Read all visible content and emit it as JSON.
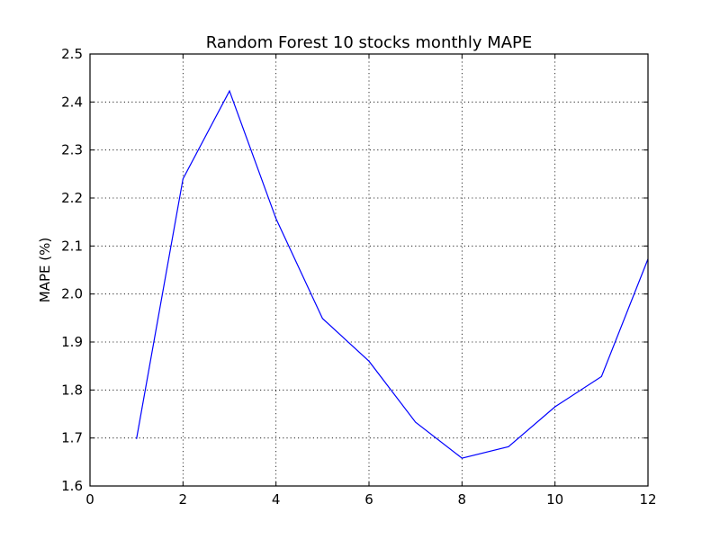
{
  "chart_data": {
    "type": "line",
    "title": "Random Forest 10 stocks monthly MAPE",
    "xlabel": "",
    "ylabel": "MAPE (%)",
    "xlim": [
      0,
      12
    ],
    "ylim": [
      1.6,
      2.5
    ],
    "x_ticks": [
      0,
      2,
      4,
      6,
      8,
      10,
      12
    ],
    "x_tick_labels": [
      "0",
      "2",
      "4",
      "6",
      "8",
      "10",
      "12"
    ],
    "y_ticks": [
      1.6,
      1.7,
      1.8,
      1.9,
      2.0,
      2.1,
      2.2,
      2.3,
      2.4,
      2.5
    ],
    "y_tick_labels": [
      "1.6",
      "1.7",
      "1.8",
      "1.9",
      "2.0",
      "2.1",
      "2.2",
      "2.3",
      "2.4",
      "2.5"
    ],
    "grid": true,
    "series": [
      {
        "color": "#0000ff",
        "x": [
          1,
          2,
          3,
          4,
          5,
          6,
          7,
          8,
          9,
          10,
          11,
          12
        ],
        "values": [
          1.698,
          2.24,
          2.423,
          2.157,
          1.949,
          1.86,
          1.733,
          1.658,
          1.682,
          1.765,
          1.828,
          2.073
        ]
      }
    ]
  }
}
